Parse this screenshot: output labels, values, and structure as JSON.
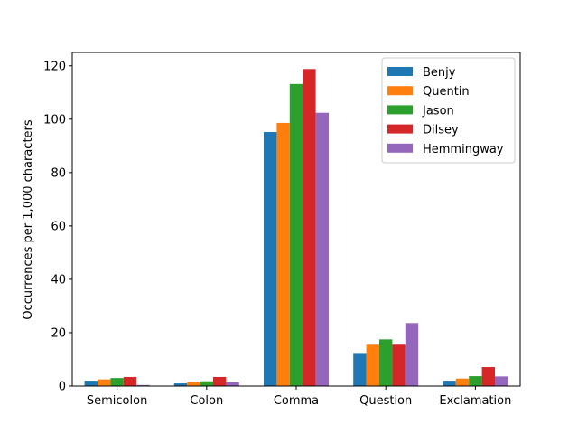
{
  "chart_data": {
    "type": "bar",
    "title": "",
    "xlabel": "",
    "ylabel": "Occurrences per 1,000 characters",
    "categories": [
      "Semicolon",
      "Colon",
      "Comma",
      "Question",
      "Exclamation"
    ],
    "series": [
      {
        "name": "Benjy",
        "color": "#1f77b4",
        "values": [
          2.0,
          1.0,
          95.2,
          12.4,
          2.0
        ]
      },
      {
        "name": "Quentin",
        "color": "#ff7f0e",
        "values": [
          2.5,
          1.4,
          98.6,
          15.5,
          2.8
        ]
      },
      {
        "name": "Jason",
        "color": "#2ca02c",
        "values": [
          3.0,
          1.8,
          113.2,
          17.5,
          3.7
        ]
      },
      {
        "name": "Dilsey",
        "color": "#d62728",
        "values": [
          3.4,
          3.4,
          118.8,
          15.5,
          7.1
        ]
      },
      {
        "name": "Hemmingway",
        "color": "#9467bd",
        "values": [
          0.4,
          1.4,
          102.4,
          23.6,
          3.6
        ]
      }
    ],
    "ylim": [
      0,
      125
    ],
    "yticks": [
      0,
      20,
      40,
      60,
      80,
      100,
      120
    ],
    "grid": false,
    "legend": "top-right"
  }
}
